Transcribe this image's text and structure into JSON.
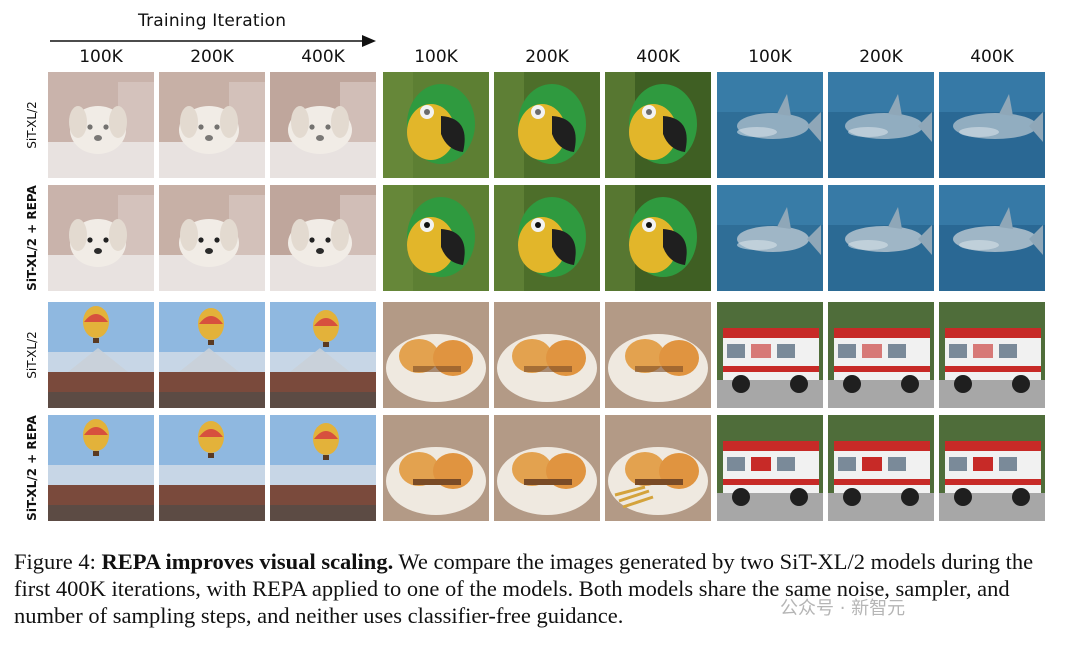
{
  "header": {
    "training_label": "Training Iteration",
    "iterations": [
      "100K",
      "200K",
      "400K",
      "100K",
      "200K",
      "400K",
      "100K",
      "200K",
      "400K"
    ]
  },
  "rows": [
    {
      "label": "SiT-XL/2",
      "bold": false
    },
    {
      "label": "SiT-XL/2 + REPA",
      "bold": true
    },
    {
      "label": "SiT-XL/2",
      "bold": false
    },
    {
      "label": "SiT-XL/2 + REPA",
      "bold": true
    }
  ],
  "subjects": {
    "top": [
      "dog",
      "parrot",
      "shark"
    ],
    "bottom": [
      "hot-air-balloon",
      "burger",
      "fire-truck"
    ]
  },
  "caption": {
    "figure": "Figure 4:",
    "title": "REPA improves visual scaling.",
    "body": "We compare the images generated by two SiT-XL/2 models during the first 400K iterations, with REPA applied to one of the models. Both models share the same noise, sampler, and number of sampling steps, and neither uses classifier-free guidance."
  },
  "watermark": "公众号 · 新智元"
}
